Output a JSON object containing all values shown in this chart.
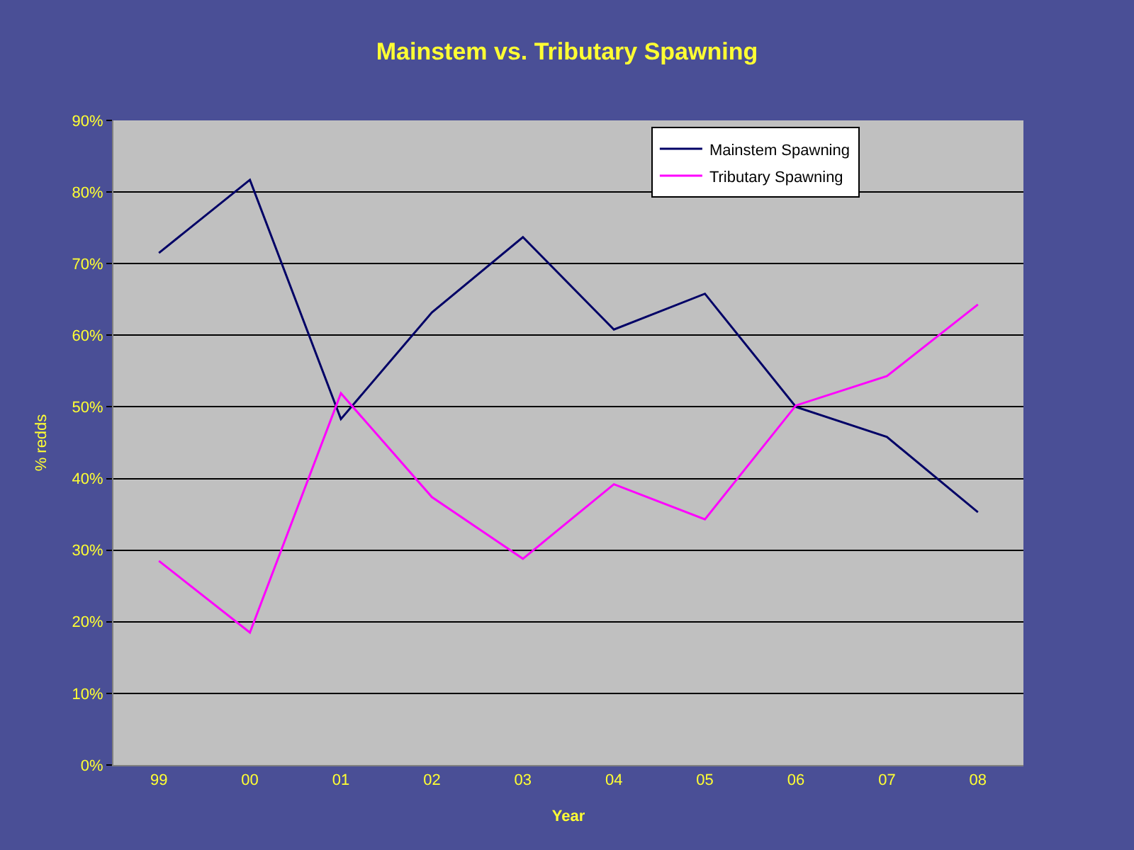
{
  "chart_data": {
    "type": "line",
    "title": "Mainstem vs. Tributary Spawning",
    "xlabel": "Year",
    "ylabel": "% redds",
    "categories": [
      "99",
      "00",
      "01",
      "02",
      "03",
      "04",
      "05",
      "06",
      "07",
      "08"
    ],
    "series": [
      {
        "name": "Mainstem Spawning",
        "color": "#000066",
        "values": [
          71.5,
          81.7,
          48.3,
          63.2,
          73.7,
          60.8,
          65.8,
          50.0,
          45.8,
          35.3
        ]
      },
      {
        "name": "Tributary Spawning",
        "color": "#ff00ff",
        "values": [
          28.5,
          18.5,
          51.9,
          37.4,
          28.8,
          39.2,
          34.3,
          50.2,
          54.3,
          64.3
        ]
      }
    ],
    "ylim": [
      0,
      90
    ],
    "yticks": [
      {
        "value": 0,
        "label": "0%"
      },
      {
        "value": 10,
        "label": "10%"
      },
      {
        "value": 20,
        "label": "20%"
      },
      {
        "value": 30,
        "label": "30%"
      },
      {
        "value": 40,
        "label": "40%"
      },
      {
        "value": 50,
        "label": "50%"
      },
      {
        "value": 60,
        "label": "60%"
      },
      {
        "value": 70,
        "label": "70%"
      },
      {
        "value": 80,
        "label": "80%"
      },
      {
        "value": 90,
        "label": "90%"
      }
    ],
    "grid": "y",
    "legend": "top right",
    "marker": "none",
    "line_style": "solid"
  }
}
